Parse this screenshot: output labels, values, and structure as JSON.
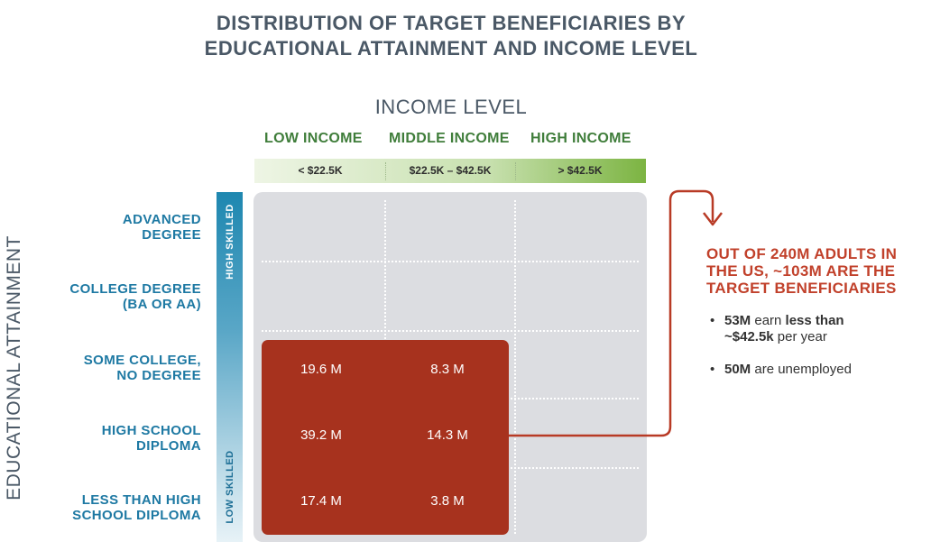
{
  "title": {
    "line1": "DISTRIBUTION OF TARGET BENEFICIARIES BY",
    "line2": "EDUCATIONAL ATTAINMENT AND INCOME LEVEL"
  },
  "income": {
    "title": "INCOME LEVEL",
    "columns": [
      {
        "label": "LOW INCOME",
        "range": "< $22.5K"
      },
      {
        "label": "MIDDLE INCOME",
        "range": "$22.5K – $42.5K"
      },
      {
        "label": "HIGH INCOME",
        "range": "> $42.5K"
      }
    ]
  },
  "education": {
    "axis_label": "EDUCATIONAL ATTAINMENT",
    "skill_high": "HIGH SKILLED",
    "skill_low": "LOW SKILLED",
    "rows": [
      {
        "line1": "ADVANCED",
        "line2": "DEGREE"
      },
      {
        "line1": "COLLEGE DEGREE",
        "line2": "(BA OR AA)"
      },
      {
        "line1": "SOME COLLEGE,",
        "line2": "NO DEGREE"
      },
      {
        "line1": "HIGH SCHOOL",
        "line2": "DIPLOMA"
      },
      {
        "line1": "LESS THAN HIGH",
        "line2": "SCHOOL DIPLOMA"
      }
    ]
  },
  "cells": [
    {
      "row": "SOME COLLEGE, NO DEGREE",
      "low": "19.6 M",
      "middle": "8.3 M"
    },
    {
      "row": "HIGH SCHOOL DIPLOMA",
      "low": "39.2 M",
      "middle": "14.3 M"
    },
    {
      "row": "LESS THAN HIGH SCHOOL DIPLOMA",
      "low": "17.4 M",
      "middle": "3.8 M"
    }
  ],
  "callout": {
    "head1": "OUT OF 240M ADULTS IN",
    "head2": "THE US, ~103M  ARE THE",
    "head3": "TARGET BENEFICIARIES",
    "bullets": [
      {
        "bold1": "53M",
        "text1": " earn ",
        "bold2": "less than",
        "line2_bold": "~$42.5k",
        "line2_text": " per year"
      },
      {
        "bold1": "50M",
        "text1": " are unemployed"
      }
    ]
  },
  "colors": {
    "title": "#4a5866",
    "income_green": "#3f7d3a",
    "education_blue": "#1e79a3",
    "target_red": "#a7321e",
    "callout_red": "#c1412b",
    "grid_gray": "#dcdde1"
  }
}
